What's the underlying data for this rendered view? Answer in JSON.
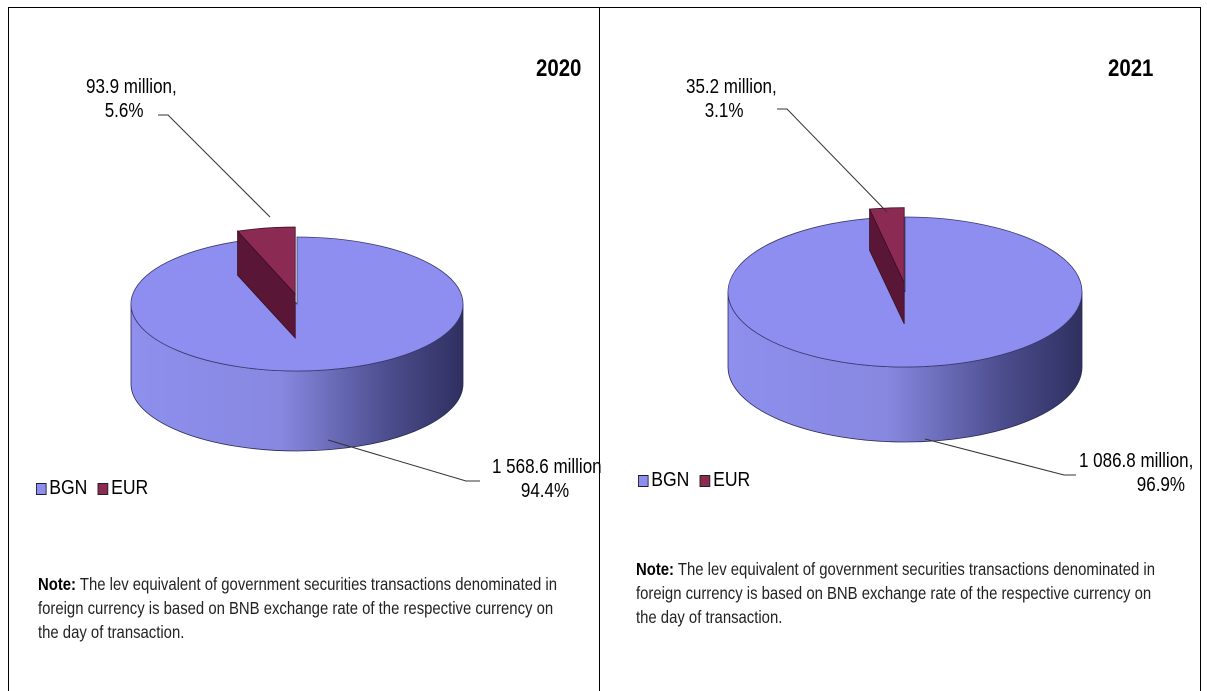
{
  "legend": [
    {
      "name": "BGN",
      "color": "#8d8ef0"
    },
    {
      "name": "EUR",
      "color": "#8b2a52"
    }
  ],
  "note": {
    "label": "Note:",
    "text": " The lev equivalent of government securities transactions denominated in foreign currency is based on BNB exchange rate of the respective currency on the day of transaction."
  },
  "chart_data": [
    {
      "type": "pie",
      "title": "2020",
      "categories": [
        "BGN",
        "EUR"
      ],
      "values": [
        1568.6,
        93.9
      ],
      "percent": [
        94.4,
        5.6
      ],
      "data_labels": {
        "bgn_line1": "1 568.6 million",
        "bgn_line2": "94.4%",
        "eur_line1": "93.9 million,",
        "eur_line2": "5.6%"
      },
      "legend_position": "bottom-left"
    },
    {
      "type": "pie",
      "title": "2021",
      "categories": [
        "BGN",
        "EUR"
      ],
      "values": [
        1086.8,
        35.2
      ],
      "percent": [
        96.9,
        3.1
      ],
      "data_labels": {
        "bgn_line1": "1 086.8 million,",
        "bgn_line2": "96.9%",
        "eur_line1": "35.2 million,",
        "eur_line2": "3.1%"
      },
      "legend_position": "bottom-left"
    }
  ]
}
